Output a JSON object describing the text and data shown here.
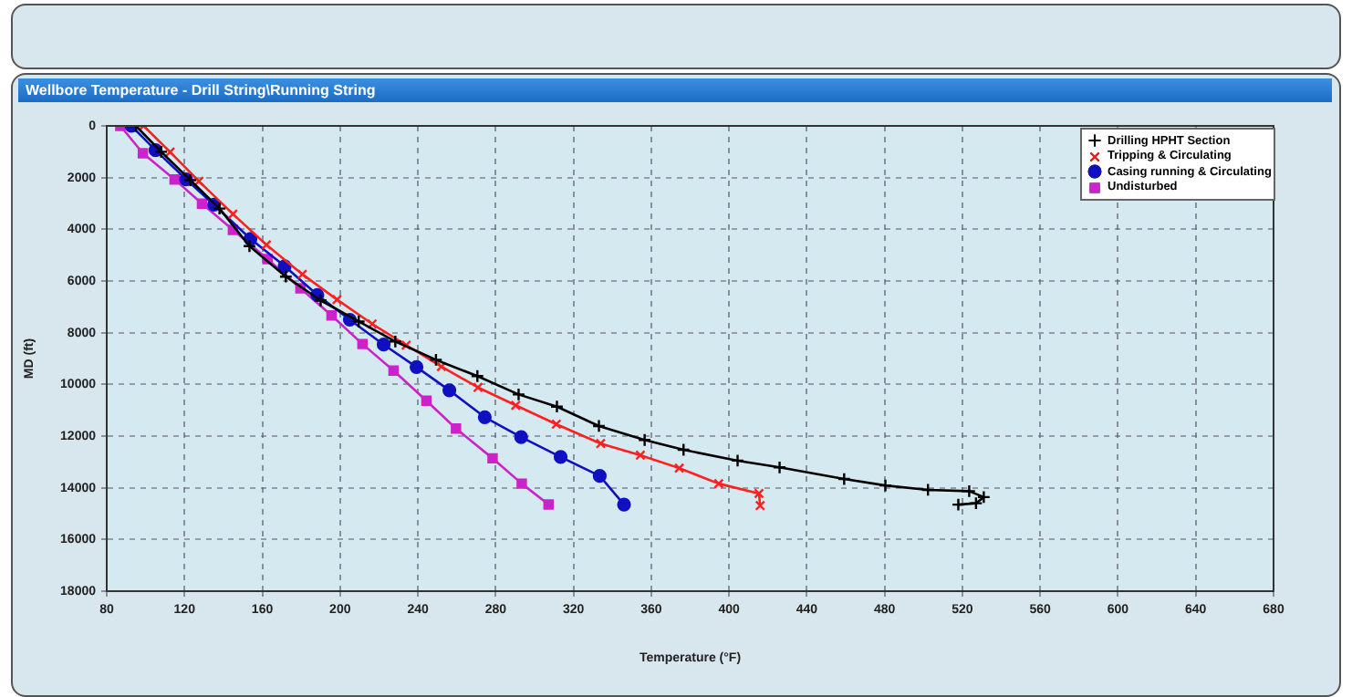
{
  "chart_data": {
    "type": "line",
    "title": "Wellbore Temperature - Drill String\\Running String",
    "xlabel": "Temperature (°F)",
    "ylabel": "MD (ft)",
    "xlim": [
      80,
      680
    ],
    "xticks": [
      80,
      120,
      160,
      200,
      240,
      280,
      320,
      360,
      400,
      440,
      480,
      520,
      560,
      600,
      640,
      680
    ],
    "ylim": [
      18000,
      0
    ],
    "yticks": [
      0,
      2000,
      4000,
      6000,
      8000,
      10000,
      12000,
      14000,
      16000,
      18000
    ],
    "grid": true,
    "legend": "top right",
    "line_style": "solid",
    "series": [
      {
        "name": "Drilling HPHT Section",
        "color": "#000000",
        "marker": "cross",
        "x": [
          95,
          108,
          123,
          138,
          153.4,
          172.1,
          190,
          209.6,
          228.4,
          249.3,
          270.6,
          291.8,
          311.5,
          333.1,
          356.6,
          376.6,
          404.4,
          426,
          459.2,
          480.4,
          502.3,
          523.5,
          531,
          527,
          517.9
        ],
        "values": [
          0,
          1000,
          2100,
          3200,
          4650,
          5830,
          6750,
          7570,
          8340,
          9050,
          9680,
          10390,
          10860,
          11610,
          12150,
          12530,
          12950,
          13210,
          13660,
          13910,
          14080,
          14130,
          14360,
          14600,
          14650
        ]
      },
      {
        "name": "Tripping & Circulating",
        "color": "#ff2020",
        "marker": "x",
        "x": [
          99,
          112.6,
          127.4,
          144.9,
          162.1,
          180.6,
          198.4,
          216.5,
          234,
          252.1,
          270.9,
          290.3,
          311.2,
          334,
          354.4,
          374.4,
          394.7,
          415.4,
          416
        ],
        "values": [
          0,
          1010,
          2140,
          3410,
          4600,
          5740,
          6720,
          7660,
          8480,
          9310,
          10120,
          10810,
          11540,
          12290,
          12740,
          13240,
          13840,
          14220,
          14690
        ]
      },
      {
        "name": "Casing running & Circulating",
        "color": "#1010c0",
        "marker": "circle",
        "x": [
          92.7,
          105.1,
          120.8,
          135.2,
          153.9,
          171.5,
          188.3,
          205,
          222.4,
          239.3,
          256.2,
          274.4,
          293.1,
          313.4,
          333.5,
          346
        ],
        "values": [
          0,
          940,
          2070,
          3050,
          4370,
          5430,
          6540,
          7500,
          8460,
          9330,
          10230,
          11270,
          12040,
          12810,
          13540,
          14650
        ]
      },
      {
        "name": "Undisturbed",
        "color": "#cc22cc",
        "marker": "square",
        "x": [
          87,
          98.6,
          114.9,
          129,
          144.9,
          162.7,
          179.6,
          195.6,
          211.5,
          227.5,
          244.4,
          259.6,
          278.4,
          293.4,
          307.2
        ],
        "values": [
          0,
          1060,
          2070,
          3010,
          4020,
          5150,
          6280,
          7330,
          8440,
          9470,
          10630,
          11710,
          12860,
          13840,
          14650
        ]
      }
    ]
  }
}
